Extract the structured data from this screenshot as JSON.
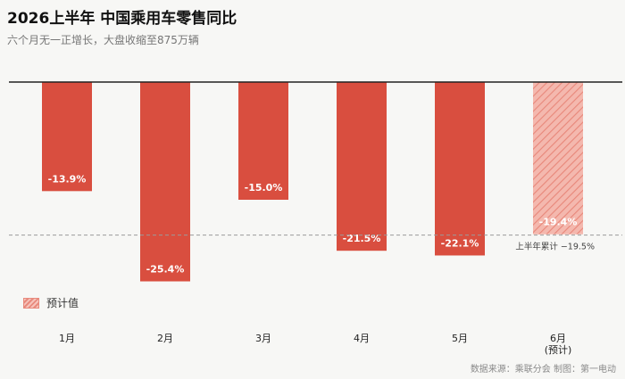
{
  "header": {
    "title": "2026上半年 中国乘用车零售同比",
    "subtitle": "六个月无一正增长，大盘收缩至875万辆"
  },
  "legend": {
    "label": "预计值"
  },
  "source": "数据来源：乘联分会  制图：第一电动",
  "colors": {
    "bar": "#d94e3f",
    "estimate_fill": "#f4b8ae",
    "estimate_stripe": "#e8877a",
    "average_line": "#9a9a9a",
    "zero_line": "#222222"
  },
  "chart_data": {
    "type": "bar",
    "categories": [
      "1月",
      "2月",
      "3月",
      "4月",
      "5月",
      "6月"
    ],
    "category_sublabels": [
      "",
      "",
      "",
      "",
      "",
      "(预计)"
    ],
    "values": [
      -13.9,
      -25.4,
      -15.0,
      -21.5,
      -22.1,
      -19.4
    ],
    "value_labels": [
      "-13.9%",
      "-25.4%",
      "-15.0%",
      "-21.5%",
      "-22.1%",
      "-19.4%"
    ],
    "estimated": [
      false,
      false,
      false,
      false,
      false,
      true
    ],
    "ylim": [
      -27,
      0
    ],
    "reference_line": {
      "value": -19.5,
      "label": "上半年累计 −19.5%"
    }
  }
}
